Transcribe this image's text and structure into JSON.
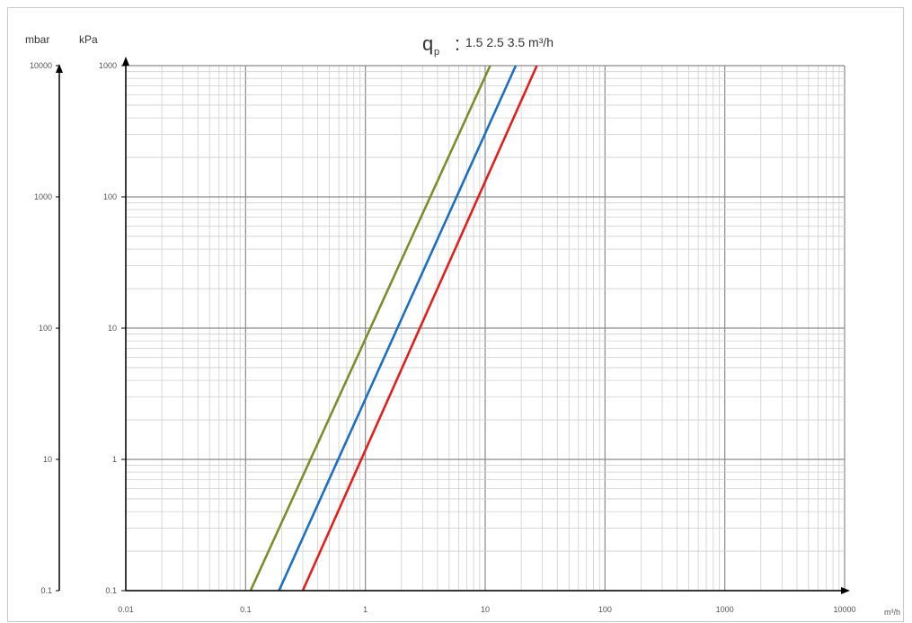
{
  "chart_data": {
    "type": "line",
    "title": {
      "symbol": "q",
      "subscript": "p",
      "colon": ":",
      "values_text": "1.5 2.5 3.5 m³/h"
    },
    "x_axis": {
      "scale": "log",
      "range": [
        0.01,
        10000
      ],
      "tick_labels": [
        "0.01",
        "0.1",
        "1",
        "10",
        "100",
        "1000",
        "10000"
      ],
      "unit_label": "m³/h"
    },
    "y_axis_left": {
      "unit_label": "mbar",
      "tick_labels": [
        "0.1",
        "10",
        "100",
        "1000",
        "10000"
      ]
    },
    "y_axis_right": {
      "unit_label": "kPa",
      "scale": "log",
      "range": [
        0.1,
        1000
      ],
      "tick_labels": [
        "0.1",
        "1",
        "10",
        "100",
        "1000"
      ]
    },
    "grid": true,
    "series": [
      {
        "color": "#7f8c2c",
        "x": [
          0.11,
          11
        ],
        "y": [
          0.1,
          1000
        ]
      },
      {
        "color": "#1f6fbf",
        "x": [
          0.19,
          18
        ],
        "y": [
          0.1,
          1000
        ]
      },
      {
        "color": "#e02020",
        "x": [
          0.3,
          27
        ],
        "y": [
          0.1,
          1000
        ]
      }
    ]
  }
}
